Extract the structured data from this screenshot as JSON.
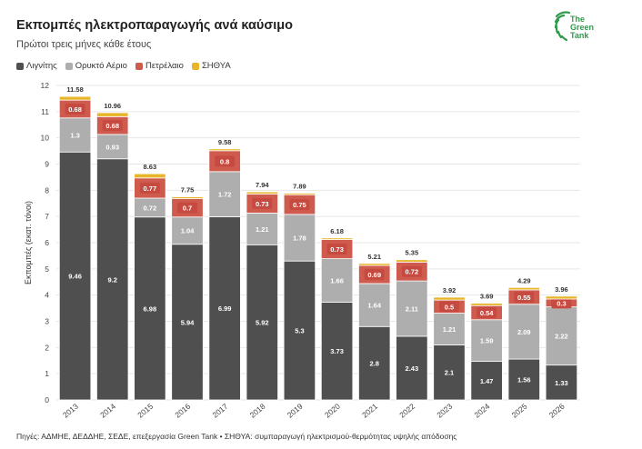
{
  "header": {
    "title": "Εκπομπές ηλεκτροπαραγωγής ανά καύσιμο",
    "subtitle": "Πρώτοι τρεις μήνες κάθε έτους"
  },
  "logo": {
    "line1": "The",
    "line2": "Green",
    "line3": "Tank",
    "icon": "green-tank-logo-icon",
    "color": "#2f9a4a"
  },
  "footer": {
    "source": "Πηγές: ΑΔΜΗΕ, ΔΕΔΔΗΕ, ΣΕΔΕ, επεξεργασία Green Tank • ΣΗΘΥΑ: συμπαραγωγή ηλεκτρισμού-θερμότητας υψηλής απόδοσης"
  },
  "chart_data": {
    "type": "bar",
    "stacked": true,
    "categories": [
      "2013",
      "2014",
      "2015",
      "2016",
      "2017",
      "2018",
      "2019",
      "2020",
      "2021",
      "2022",
      "2023",
      "2024",
      "2025",
      "2026"
    ],
    "series": [
      {
        "name": "Λιγνίτης",
        "color": "#4f4f4f",
        "values": [
          9.46,
          9.2,
          6.98,
          5.94,
          6.99,
          5.92,
          5.3,
          3.73,
          2.8,
          2.43,
          2.1,
          1.47,
          1.56,
          1.33
        ]
      },
      {
        "name": "Ορυκτό Αέριο",
        "color": "#aeaeae",
        "values": [
          1.3,
          0.93,
          0.72,
          1.04,
          1.72,
          1.21,
          1.78,
          1.66,
          1.64,
          2.11,
          1.21,
          1.59,
          2.09,
          2.22
        ]
      },
      {
        "name": "Πετρέλαιο",
        "color": "#cf5a4e",
        "values": [
          0.68,
          0.68,
          0.77,
          0.7,
          0.8,
          0.73,
          0.75,
          0.73,
          0.69,
          0.72,
          0.5,
          0.54,
          0.55,
          0.3
        ]
      },
      {
        "name": "ΣΗΘΥΑ",
        "color": "#e8b52a",
        "values": [
          0.14,
          0.15,
          0.16,
          0.07,
          0.07,
          0.08,
          0.06,
          0.06,
          0.08,
          0.09,
          0.11,
          0.09,
          0.09,
          0.11
        ]
      }
    ],
    "totals": [
      11.58,
      10.96,
      8.63,
      7.75,
      9.58,
      7.94,
      7.89,
      6.18,
      5.21,
      5.35,
      3.92,
      3.69,
      4.29,
      3.96
    ],
    "labeled_series": [
      "Λιγνίτης",
      "Ορυκτό Αέριο",
      "Πετρέλαιο"
    ],
    "ylabel": "Εκπομπές (εκατ. τόνοι)",
    "ylim": [
      0,
      12
    ],
    "yticks": [
      0,
      1,
      2,
      3,
      4,
      5,
      6,
      7,
      8,
      9,
      10,
      11,
      12
    ],
    "grid": true,
    "legend_position": "top-left"
  }
}
